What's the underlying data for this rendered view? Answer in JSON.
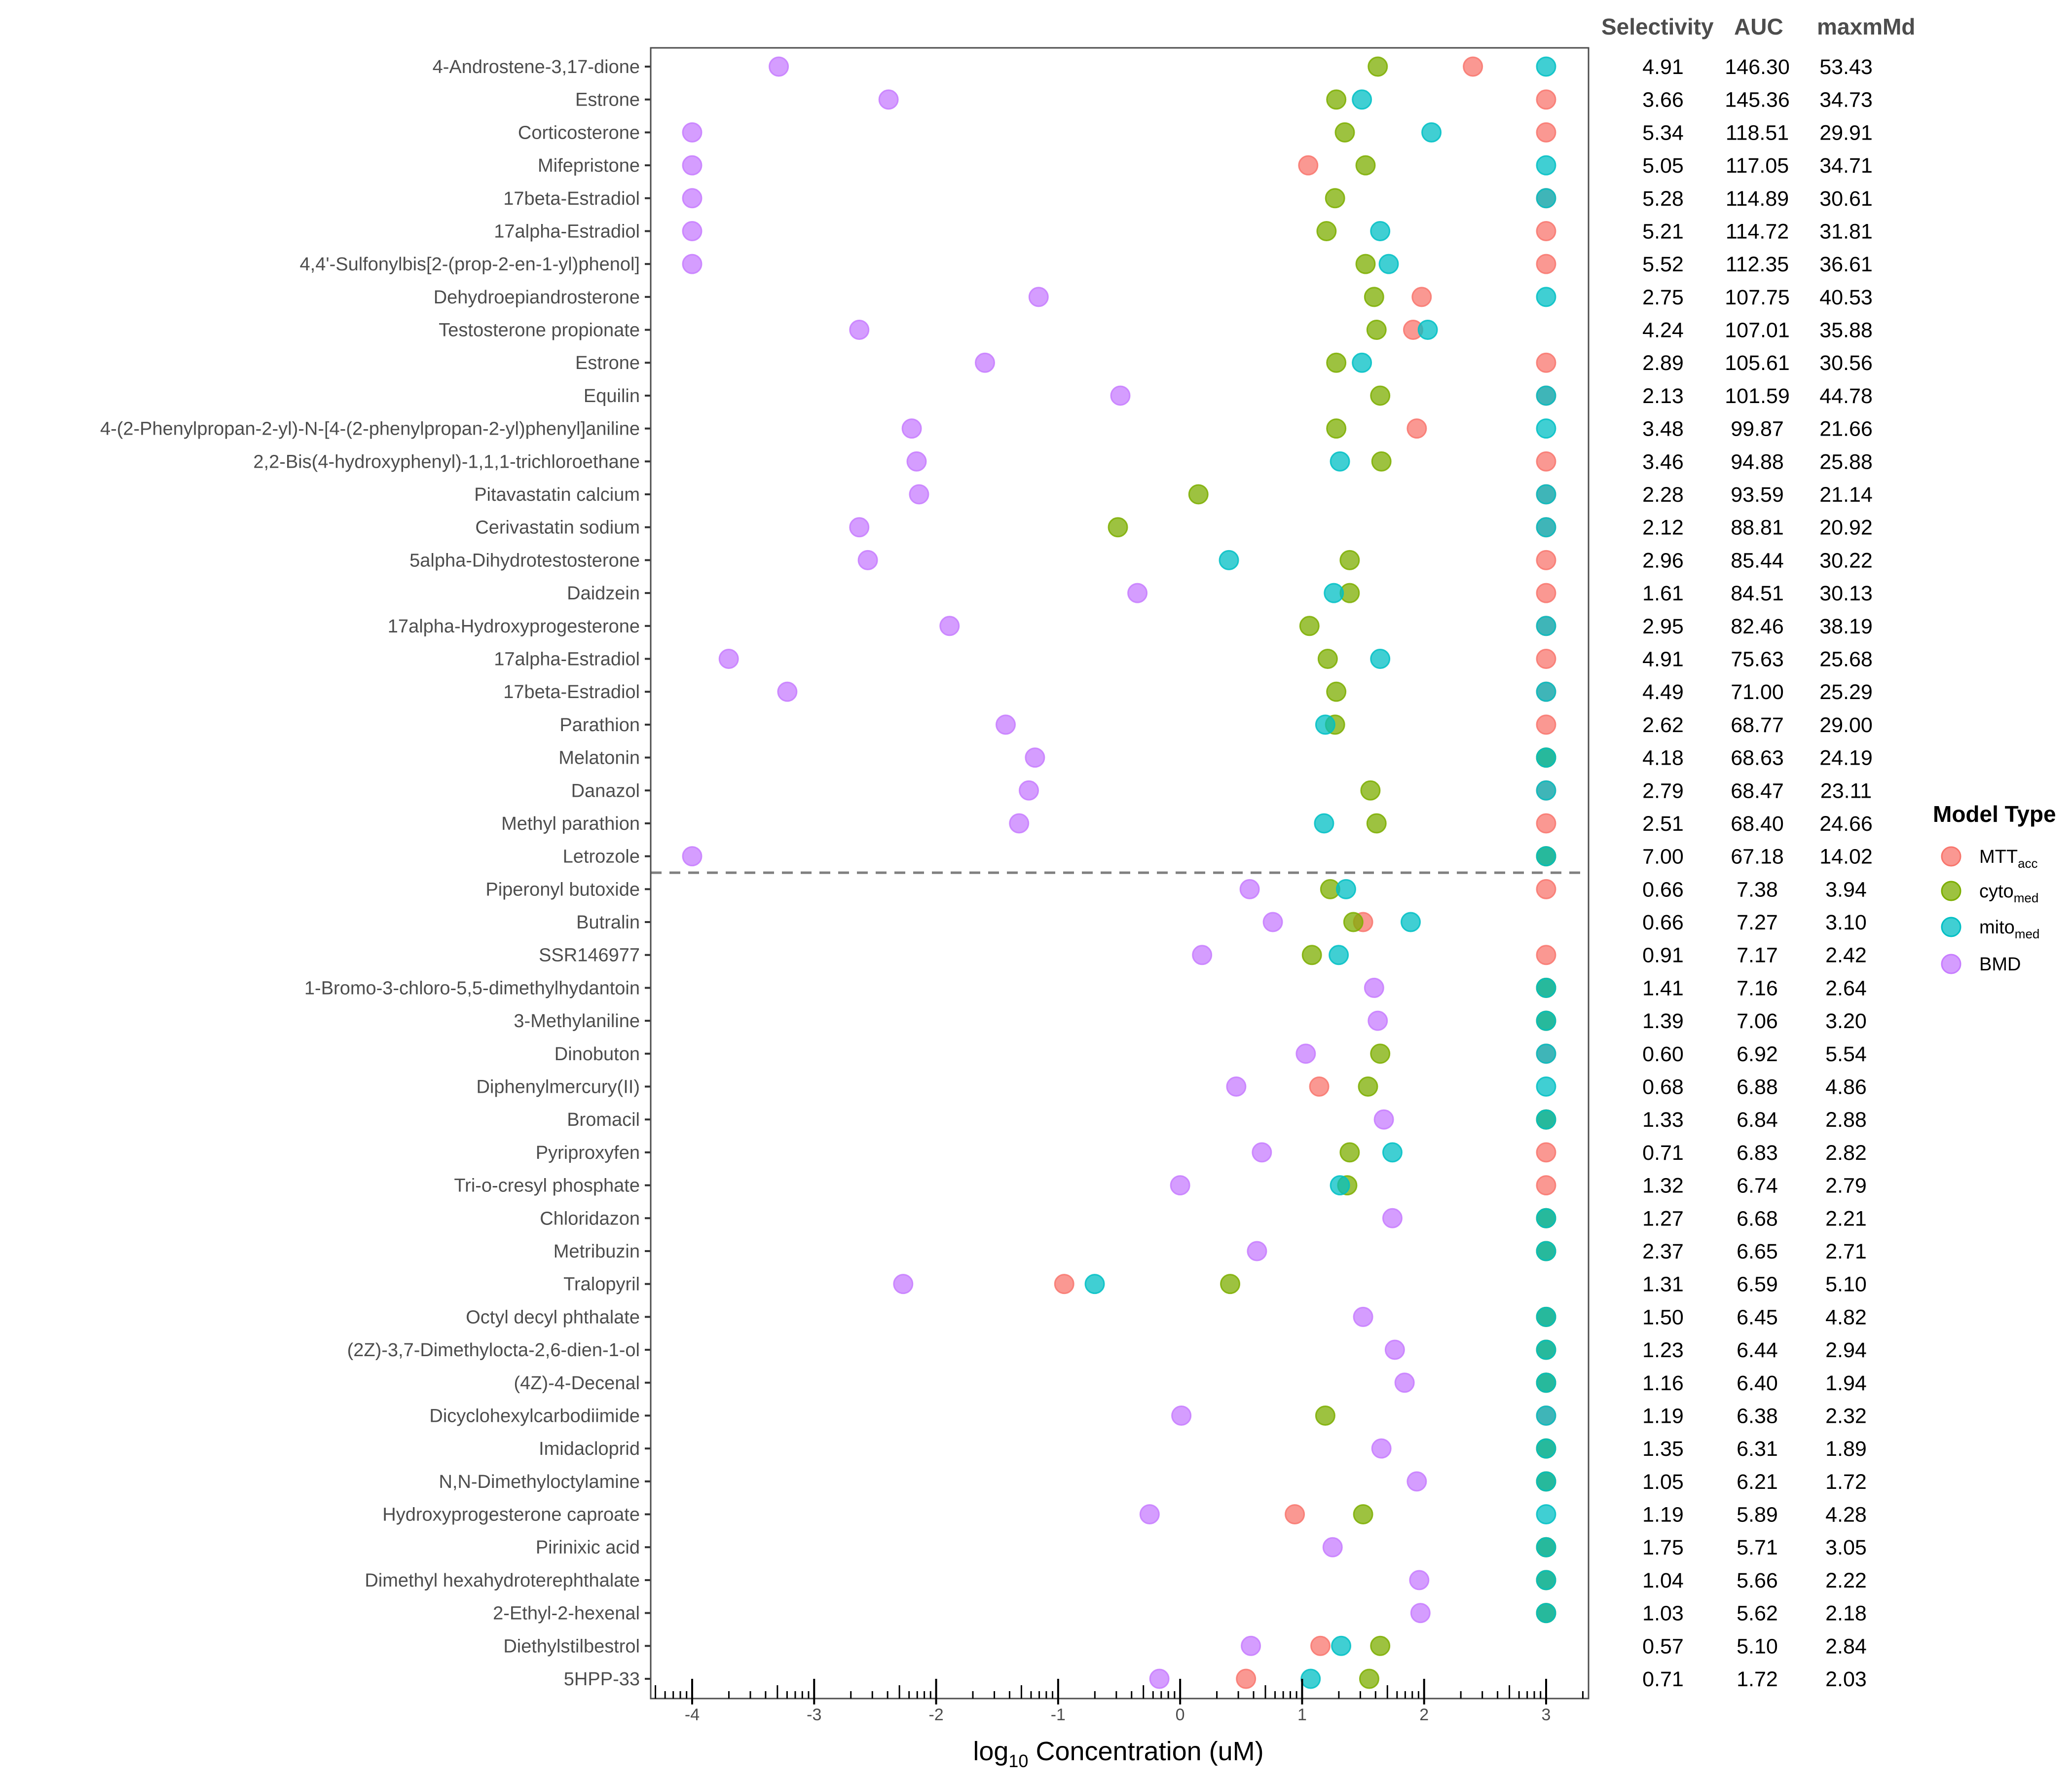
{
  "chart_data": {
    "type": "scatter",
    "title": "",
    "xlabel": "log10 Concentration (uM)",
    "xlabel_parts": {
      "prefix": "log",
      "subscript": "10",
      "suffix": " Concentration (uM)"
    },
    "ylabel": "",
    "xlim": [
      -4.35,
      3.35
    ],
    "x_ticks": [
      -4,
      -3,
      -2,
      -1,
      0,
      1,
      2,
      3
    ],
    "x_tick_labels": [
      "-4",
      "-3",
      "-2",
      "-1",
      "0",
      "1",
      "2",
      "3"
    ],
    "minor_log_ticks": true,
    "grid": false,
    "divider_after_row": 25,
    "legend": {
      "title": "Model Type",
      "placement": "right",
      "entries": [
        {
          "key": "MTT",
          "label": "MTT",
          "sub": "acc",
          "color": "#F8766D"
        },
        {
          "key": "cyto",
          "label": "cyto",
          "sub": "med",
          "color": "#7CAE00"
        },
        {
          "key": "mito",
          "label": "mito",
          "sub": "med",
          "color": "#00BFC4"
        },
        {
          "key": "BMD",
          "label": "BMD",
          "sub": "",
          "color": "#C77CFF"
        }
      ]
    },
    "table_headers": [
      "Selectivity",
      "AUC",
      "maxmMd"
    ],
    "rows": [
      {
        "name": "4-Androstene-3,17-dione",
        "BMD": -3.29,
        "cyto": 1.62,
        "MTT": 2.4,
        "mito": 3.0,
        "Selectivity": "4.91",
        "AUC": "146.30",
        "maxmMd": "53.43"
      },
      {
        "name": "Estrone",
        "BMD": -2.39,
        "cyto": 1.28,
        "mito": 1.49,
        "MTT": 3.0,
        "Selectivity": "3.66",
        "AUC": "145.36",
        "maxmMd": "34.73"
      },
      {
        "name": "Corticosterone",
        "BMD": -4.0,
        "cyto": 1.35,
        "mito": 2.06,
        "MTT": 3.0,
        "Selectivity": "5.34",
        "AUC": "118.51",
        "maxmMd": "29.91"
      },
      {
        "name": "Mifepristone",
        "BMD": -4.0,
        "MTT": 1.05,
        "cyto": 1.52,
        "mito": 3.0,
        "Selectivity": "5.05",
        "AUC": "117.05",
        "maxmMd": "34.71"
      },
      {
        "name": "17beta-Estradiol",
        "BMD": -4.0,
        "cyto": 1.27,
        "MTT": 3.0,
        "mito": 3.0,
        "Selectivity": "5.28",
        "AUC": "114.89",
        "maxmMd": "30.61"
      },
      {
        "name": "17alpha-Estradiol",
        "BMD": -4.0,
        "cyto": 1.2,
        "mito": 1.64,
        "MTT": 3.0,
        "Selectivity": "5.21",
        "AUC": "114.72",
        "maxmMd": "31.81"
      },
      {
        "name": "4,4'-Sulfonylbis[2-(prop-2-en-1-yl)phenol]",
        "BMD": -4.0,
        "cyto": 1.52,
        "mito": 1.71,
        "MTT": 3.0,
        "Selectivity": "5.52",
        "AUC": "112.35",
        "maxmMd": "36.61"
      },
      {
        "name": "Dehydroepiandrosterone",
        "BMD": -1.16,
        "cyto": 1.59,
        "MTT": 1.98,
        "mito": 3.0,
        "Selectivity": "2.75",
        "AUC": "107.75",
        "maxmMd": "40.53"
      },
      {
        "name": "Testosterone propionate",
        "BMD": -2.63,
        "cyto": 1.61,
        "MTT": 1.91,
        "mito": 2.03,
        "Selectivity": "4.24",
        "AUC": "107.01",
        "maxmMd": "35.88"
      },
      {
        "name": "Estrone",
        "BMD": -1.6,
        "cyto": 1.28,
        "mito": 1.49,
        "MTT": 3.0,
        "Selectivity": "2.89",
        "AUC": "105.61",
        "maxmMd": "30.56"
      },
      {
        "name": "Equilin",
        "BMD": -0.49,
        "cyto": 1.64,
        "MTT": 3.0,
        "mito": 3.0,
        "Selectivity": "2.13",
        "AUC": "101.59",
        "maxmMd": "44.78"
      },
      {
        "name": "4-(2-Phenylpropan-2-yl)-N-[4-(2-phenylpropan-2-yl)phenyl]aniline",
        "BMD": -2.2,
        "cyto": 1.28,
        "MTT": 1.94,
        "mito": 3.0,
        "Selectivity": "3.48",
        "AUC": "99.87",
        "maxmMd": "21.66"
      },
      {
        "name": "2,2-Bis(4-hydroxyphenyl)-1,1,1-trichloroethane",
        "BMD": -2.16,
        "mito": 1.31,
        "cyto": 1.65,
        "MTT": 3.0,
        "Selectivity": "3.46",
        "AUC": "94.88",
        "maxmMd": "25.88"
      },
      {
        "name": "Pitavastatin calcium",
        "BMD": -2.14,
        "cyto": 0.15,
        "MTT": 3.0,
        "mito": 3.0,
        "Selectivity": "2.28",
        "AUC": "93.59",
        "maxmMd": "21.14"
      },
      {
        "name": "Cerivastatin sodium",
        "BMD": -2.63,
        "cyto": -0.51,
        "MTT": 3.0,
        "mito": 3.0,
        "Selectivity": "2.12",
        "AUC": "88.81",
        "maxmMd": "20.92"
      },
      {
        "name": "5alpha-Dihydrotestosterone",
        "BMD": -2.56,
        "mito": 0.4,
        "cyto": 1.39,
        "MTT": 3.0,
        "Selectivity": "2.96",
        "AUC": "85.44",
        "maxmMd": "30.22"
      },
      {
        "name": "Daidzein",
        "BMD": -0.35,
        "mito": 1.26,
        "cyto": 1.39,
        "MTT": 3.0,
        "Selectivity": "1.61",
        "AUC": "84.51",
        "maxmMd": "30.13"
      },
      {
        "name": "17alpha-Hydroxyprogesterone",
        "BMD": -1.89,
        "cyto": 1.06,
        "MTT": 3.0,
        "mito": 3.0,
        "Selectivity": "2.95",
        "AUC": "82.46",
        "maxmMd": "38.19"
      },
      {
        "name": "17alpha-Estradiol",
        "BMD": -3.7,
        "cyto": 1.21,
        "mito": 1.64,
        "MTT": 3.0,
        "Selectivity": "4.91",
        "AUC": "75.63",
        "maxmMd": "25.68"
      },
      {
        "name": "17beta-Estradiol",
        "BMD": -3.22,
        "cyto": 1.28,
        "MTT": 3.0,
        "mito": 3.0,
        "Selectivity": "4.49",
        "AUC": "71.00",
        "maxmMd": "25.29"
      },
      {
        "name": "Parathion",
        "BMD": -1.43,
        "mito": 1.19,
        "cyto": 1.27,
        "MTT": 3.0,
        "Selectivity": "2.62",
        "AUC": "68.77",
        "maxmMd": "29.00"
      },
      {
        "name": "Melatonin",
        "BMD": -1.19,
        "MTT": 3.0,
        "cyto": 3.0,
        "mito": 3.0,
        "Selectivity": "4.18",
        "AUC": "68.63",
        "maxmMd": "24.19"
      },
      {
        "name": "Danazol",
        "BMD": -1.24,
        "cyto": 1.56,
        "MTT": 3.0,
        "mito": 3.0,
        "Selectivity": "2.79",
        "AUC": "68.47",
        "maxmMd": "23.11"
      },
      {
        "name": "Methyl parathion",
        "BMD": -1.32,
        "mito": 1.18,
        "cyto": 1.61,
        "MTT": 3.0,
        "Selectivity": "2.51",
        "AUC": "68.40",
        "maxmMd": "24.66"
      },
      {
        "name": "Letrozole",
        "BMD": -4.0,
        "MTT": 3.0,
        "cyto": 3.0,
        "mito": 3.0,
        "Selectivity": "7.00",
        "AUC": "67.18",
        "maxmMd": "14.02"
      },
      {
        "name": "Piperonyl butoxide",
        "BMD": 0.57,
        "cyto": 1.23,
        "mito": 1.36,
        "MTT": 3.0,
        "Selectivity": "0.66",
        "AUC": "7.38",
        "maxmMd": "3.94"
      },
      {
        "name": "Butralin",
        "BMD": 0.76,
        "cyto": 1.42,
        "MTT": 1.5,
        "mito": 1.89,
        "Selectivity": "0.66",
        "AUC": "7.27",
        "maxmMd": "3.10"
      },
      {
        "name": "SSR146977",
        "BMD": 0.18,
        "cyto": 1.08,
        "mito": 1.3,
        "MTT": 3.0,
        "Selectivity": "0.91",
        "AUC": "7.17",
        "maxmMd": "2.42"
      },
      {
        "name": "1-Bromo-3-chloro-5,5-dimethylhydantoin",
        "BMD": 1.59,
        "MTT": 3.0,
        "cyto": 3.0,
        "mito": 3.0,
        "Selectivity": "1.41",
        "AUC": "7.16",
        "maxmMd": "2.64"
      },
      {
        "name": "3-Methylaniline",
        "BMD": 1.62,
        "MTT": 3.0,
        "cyto": 3.0,
        "mito": 3.0,
        "Selectivity": "1.39",
        "AUC": "7.06",
        "maxmMd": "3.20"
      },
      {
        "name": "Dinobuton",
        "BMD": 1.03,
        "cyto": 1.64,
        "MTT": 3.0,
        "mito": 3.0,
        "Selectivity": "0.60",
        "AUC": "6.92",
        "maxmMd": "5.54"
      },
      {
        "name": "Diphenylmercury(II)",
        "BMD": 0.46,
        "MTT": 1.14,
        "cyto": 1.54,
        "mito": 3.0,
        "Selectivity": "0.68",
        "AUC": "6.88",
        "maxmMd": "4.86"
      },
      {
        "name": "Bromacil",
        "BMD": 1.67,
        "MTT": 3.0,
        "cyto": 3.0,
        "mito": 3.0,
        "Selectivity": "1.33",
        "AUC": "6.84",
        "maxmMd": "2.88"
      },
      {
        "name": "Pyriproxyfen",
        "BMD": 0.67,
        "cyto": 1.39,
        "mito": 1.74,
        "MTT": 3.0,
        "Selectivity": "0.71",
        "AUC": "6.83",
        "maxmMd": "2.82"
      },
      {
        "name": "Tri-o-cresyl phosphate",
        "BMD": 0.0,
        "mito": 1.31,
        "cyto": 1.37,
        "MTT": 3.0,
        "Selectivity": "1.32",
        "AUC": "6.74",
        "maxmMd": "2.79"
      },
      {
        "name": "Chloridazon",
        "BMD": 1.74,
        "MTT": 3.0,
        "cyto": 3.0,
        "mito": 3.0,
        "Selectivity": "1.27",
        "AUC": "6.68",
        "maxmMd": "2.21"
      },
      {
        "name": "Metribuzin",
        "BMD": 0.63,
        "MTT": 3.0,
        "cyto": 3.0,
        "mito": 3.0,
        "Selectivity": "2.37",
        "AUC": "6.65",
        "maxmMd": "2.71"
      },
      {
        "name": "Tralopyril",
        "BMD": -2.27,
        "MTT": -0.95,
        "mito": -0.7,
        "cyto": 0.41,
        "Selectivity": "1.31",
        "AUC": "6.59",
        "maxmMd": "5.10"
      },
      {
        "name": "Octyl decyl phthalate",
        "BMD": 1.5,
        "MTT": 3.0,
        "cyto": 3.0,
        "mito": 3.0,
        "Selectivity": "1.50",
        "AUC": "6.45",
        "maxmMd": "4.82"
      },
      {
        "name": "(2Z)-3,7-Dimethylocta-2,6-dien-1-ol",
        "BMD": 1.76,
        "MTT": 3.0,
        "cyto": 3.0,
        "mito": 3.0,
        "Selectivity": "1.23",
        "AUC": "6.44",
        "maxmMd": "2.94"
      },
      {
        "name": "(4Z)-4-Decenal",
        "BMD": 1.84,
        "MTT": 3.0,
        "cyto": 3.0,
        "mito": 3.0,
        "Selectivity": "1.16",
        "AUC": "6.40",
        "maxmMd": "1.94"
      },
      {
        "name": "Dicyclohexylcarbodiimide",
        "BMD": 0.01,
        "cyto": 1.19,
        "MTT": 3.0,
        "mito": 3.0,
        "Selectivity": "1.19",
        "AUC": "6.38",
        "maxmMd": "2.32"
      },
      {
        "name": "Imidacloprid",
        "BMD": 1.65,
        "MTT": 3.0,
        "cyto": 3.0,
        "mito": 3.0,
        "Selectivity": "1.35",
        "AUC": "6.31",
        "maxmMd": "1.89"
      },
      {
        "name": "N,N-Dimethyloctylamine",
        "BMD": 1.94,
        "MTT": 3.0,
        "cyto": 3.0,
        "mito": 3.0,
        "Selectivity": "1.05",
        "AUC": "6.21",
        "maxmMd": "1.72"
      },
      {
        "name": "Hydroxyprogesterone caproate",
        "BMD": -0.25,
        "MTT": 0.94,
        "cyto": 1.5,
        "mito": 3.0,
        "Selectivity": "1.19",
        "AUC": "5.89",
        "maxmMd": "4.28"
      },
      {
        "name": "Pirinixic acid",
        "BMD": 1.25,
        "MTT": 3.0,
        "cyto": 3.0,
        "mito": 3.0,
        "Selectivity": "1.75",
        "AUC": "5.71",
        "maxmMd": "3.05"
      },
      {
        "name": "Dimethyl hexahydroterephthalate",
        "BMD": 1.96,
        "MTT": 3.0,
        "cyto": 3.0,
        "mito": 3.0,
        "Selectivity": "1.04",
        "AUC": "5.66",
        "maxmMd": "2.22"
      },
      {
        "name": "2-Ethyl-2-hexenal",
        "BMD": 1.97,
        "MTT": 3.0,
        "cyto": 3.0,
        "mito": 3.0,
        "Selectivity": "1.03",
        "AUC": "5.62",
        "maxmMd": "2.18"
      },
      {
        "name": "Diethylstilbestrol",
        "BMD": 0.58,
        "MTT": 1.15,
        "mito": 1.32,
        "cyto": 1.64,
        "Selectivity": "0.57",
        "AUC": "5.10",
        "maxmMd": "2.84"
      },
      {
        "name": "5HPP-33",
        "BMD": -0.17,
        "MTT": 0.54,
        "mito": 1.07,
        "cyto": 1.55,
        "Selectivity": "0.71",
        "AUC": "1.72",
        "maxmMd": "2.03"
      }
    ]
  }
}
